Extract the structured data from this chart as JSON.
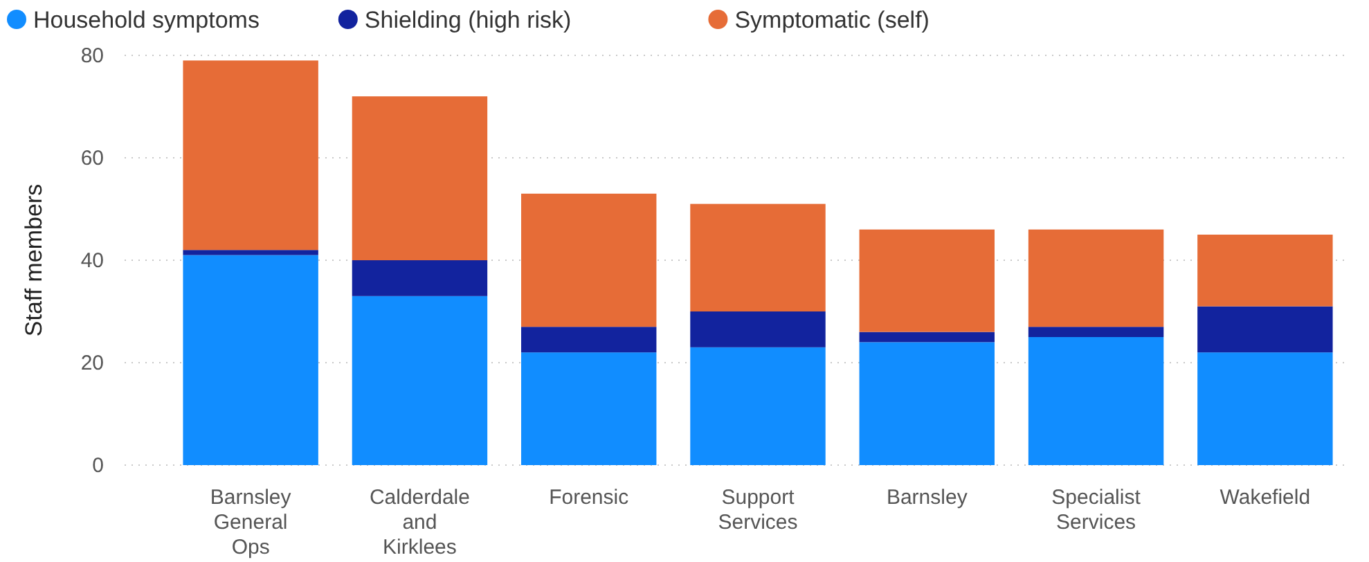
{
  "chart_data": {
    "type": "bar",
    "stacked": true,
    "ylabel": "Staff members",
    "categories": [
      "Barnsley General Ops",
      "Calderdale and Kirklees",
      "Forensic",
      "Support Services",
      "Barnsley",
      "Specialist Services",
      "Wakefield"
    ],
    "series": [
      {
        "name": "Household symptoms",
        "color": "#118dff",
        "values": [
          41,
          33,
          22,
          23,
          24,
          25,
          22
        ]
      },
      {
        "name": "Shielding (high risk)",
        "color": "#12239e",
        "values": [
          1,
          7,
          5,
          7,
          2,
          2,
          9
        ]
      },
      {
        "name": "Symptomatic (self)",
        "color": "#e66c37",
        "values": [
          37,
          32,
          26,
          21,
          20,
          19,
          14
        ]
      }
    ],
    "ylim": [
      0,
      80
    ],
    "yticks": [
      0,
      20,
      40,
      60,
      80
    ],
    "grid": "y",
    "legend": "top left"
  }
}
